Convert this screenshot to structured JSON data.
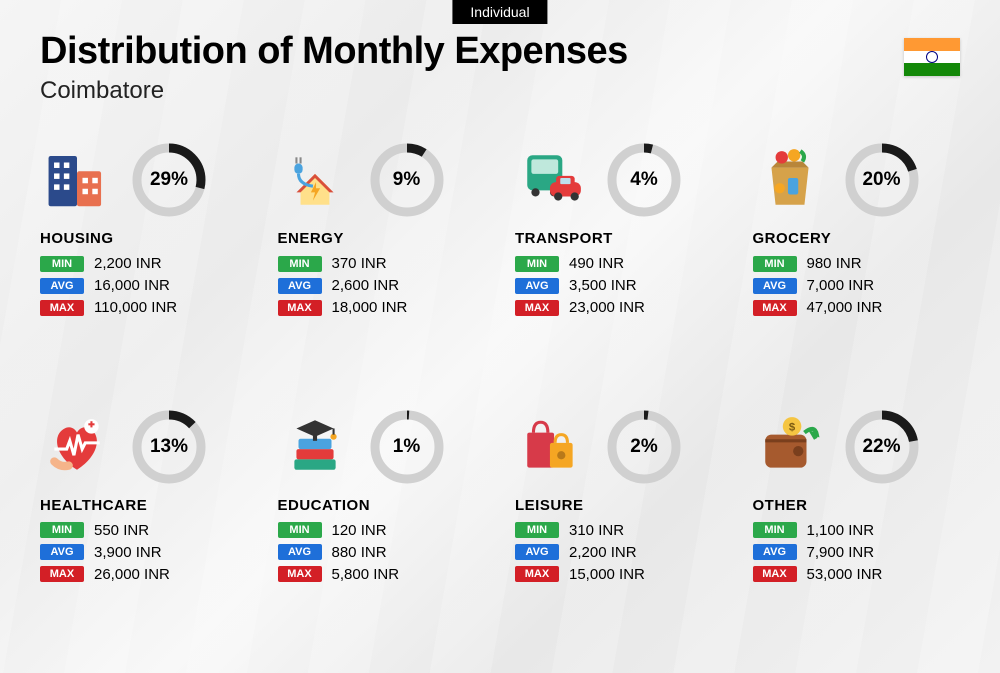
{
  "tag": "Individual",
  "title": "Distribution of Monthly Expenses",
  "subtitle": "Coimbatore",
  "currency": "INR",
  "flag": {
    "top": "#FF9933",
    "mid": "#FFFFFF",
    "bot": "#138808"
  },
  "ring": {
    "track_color": "#d0d0d0",
    "progress_color": "#1a1a1a",
    "stroke_width": 9,
    "radius": 32
  },
  "badges": {
    "min": {
      "label": "MIN",
      "bg": "#2BA84A"
    },
    "avg": {
      "label": "AVG",
      "bg": "#1E6FD9"
    },
    "max": {
      "label": "MAX",
      "bg": "#D31F26"
    }
  },
  "categories": [
    {
      "key": "housing",
      "name": "HOUSING",
      "percent": 29,
      "min": "2,200",
      "avg": "16,000",
      "max": "110,000"
    },
    {
      "key": "energy",
      "name": "ENERGY",
      "percent": 9,
      "min": "370",
      "avg": "2,600",
      "max": "18,000"
    },
    {
      "key": "transport",
      "name": "TRANSPORT",
      "percent": 4,
      "min": "490",
      "avg": "3,500",
      "max": "23,000"
    },
    {
      "key": "grocery",
      "name": "GROCERY",
      "percent": 20,
      "min": "980",
      "avg": "7,000",
      "max": "47,000"
    },
    {
      "key": "healthcare",
      "name": "HEALTHCARE",
      "percent": 13,
      "min": "550",
      "avg": "3,900",
      "max": "26,000"
    },
    {
      "key": "education",
      "name": "EDUCATION",
      "percent": 1,
      "min": "120",
      "avg": "880",
      "max": "5,800"
    },
    {
      "key": "leisure",
      "name": "LEISURE",
      "percent": 2,
      "min": "310",
      "avg": "2,200",
      "max": "15,000"
    },
    {
      "key": "other",
      "name": "OTHER",
      "percent": 22,
      "min": "1,100",
      "avg": "7,900",
      "max": "53,000"
    }
  ]
}
